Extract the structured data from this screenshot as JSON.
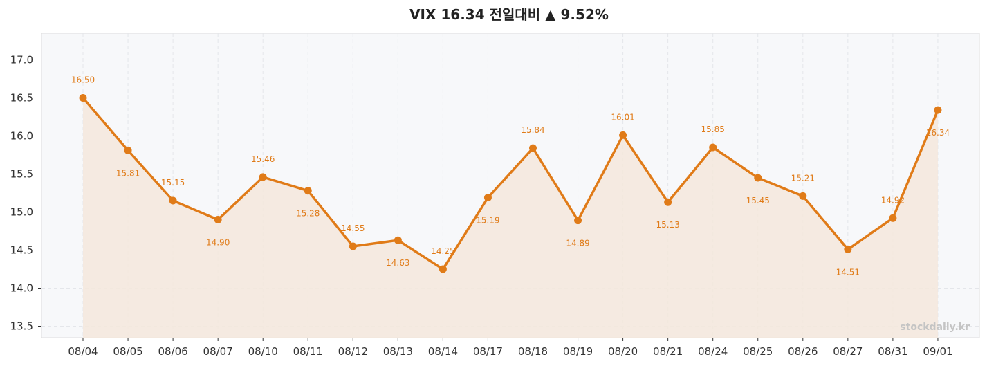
{
  "chart_data": {
    "type": "line",
    "title": "VIX  16.34  전일대비 ▲ 9.52%",
    "xlabel": "",
    "ylabel": "",
    "categories": [
      "08/04",
      "08/05",
      "08/06",
      "08/07",
      "08/10",
      "08/11",
      "08/12",
      "08/13",
      "08/14",
      "08/17",
      "08/18",
      "08/19",
      "08/20",
      "08/21",
      "08/24",
      "08/25",
      "08/26",
      "08/27",
      "08/31",
      "09/01"
    ],
    "series": [
      {
        "values": [
          16.5,
          15.81,
          15.15,
          14.9,
          15.46,
          15.28,
          14.55,
          14.63,
          14.25,
          15.19,
          15.84,
          14.89,
          16.01,
          15.13,
          15.85,
          15.45,
          15.21,
          14.51,
          14.92,
          16.34
        ],
        "labels": [
          "16.50",
          "15.81",
          "15.15",
          "14.90",
          "15.46",
          "15.28",
          "14.55",
          "14.63",
          "14.25",
          "15.19",
          "15.84",
          "14.89",
          "16.01",
          "15.13",
          "15.85",
          "15.45",
          "15.21",
          "14.51",
          "14.92",
          "16.34"
        ],
        "label_position": [
          "above",
          "below",
          "above",
          "below",
          "above",
          "below",
          "above",
          "below",
          "above",
          "below",
          "above",
          "below",
          "above",
          "below",
          "above",
          "below",
          "above",
          "below",
          "above",
          "below"
        ]
      }
    ],
    "ylim": [
      13.35,
      17.35
    ],
    "yticks": [
      13.5,
      14.0,
      14.5,
      15.0,
      15.5,
      16.0,
      16.5,
      17.0
    ],
    "ytick_labels": [
      "13.5",
      "14.0",
      "14.5",
      "15.0",
      "15.5",
      "16.0",
      "16.5",
      "17.0"
    ],
    "grid": true,
    "area_fill": true,
    "colors": {
      "line": "#e07b18",
      "fill": "#f5e8dc",
      "plot_bg": "#f7f8fa",
      "grid": "#e4e6ea"
    },
    "watermark": "stockdaily.kr"
  }
}
